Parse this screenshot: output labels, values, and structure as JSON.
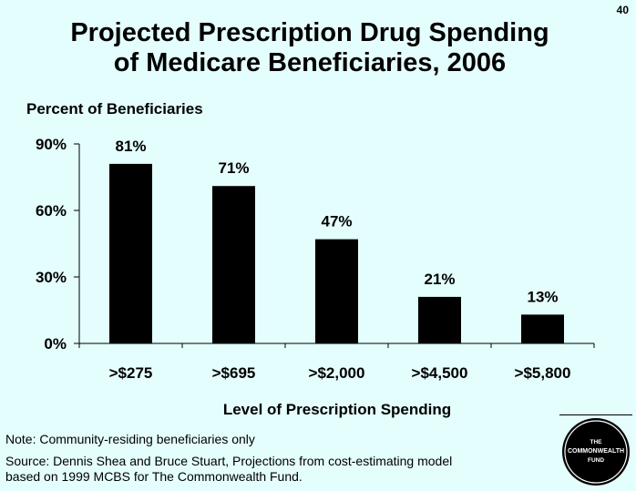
{
  "page_number": "40",
  "title_line1": "Projected Prescription Drug Spending",
  "title_line2": "of Medicare Beneficiaries, 2006",
  "chart_data": {
    "type": "bar",
    "ylabel": "Percent of Beneficiaries",
    "xlabel": "Level of Prescription Spending",
    "categories": [
      ">$275",
      ">$695",
      ">$2,000",
      ">$4,500",
      ">$5,800"
    ],
    "values": [
      81,
      71,
      47,
      21,
      13
    ],
    "value_labels": [
      "81%",
      "71%",
      "47%",
      "21%",
      "13%"
    ],
    "yticks": [
      "0%",
      "30%",
      "60%",
      "90%"
    ],
    "ytick_values": [
      0,
      30,
      60,
      90
    ],
    "ylim": [
      0,
      90
    ],
    "grid": false,
    "bar_color": "#000000"
  },
  "note": "Note: Community-residing beneficiaries only",
  "source_line1": "Source: Dennis Shea and Bruce Stuart, Projections from cost-estimating model",
  "source_line2": "based on 1999 MCBS for The Commonwealth Fund.",
  "logo_lines": [
    "THE",
    "COMMONWEALTH",
    "FUND"
  ]
}
